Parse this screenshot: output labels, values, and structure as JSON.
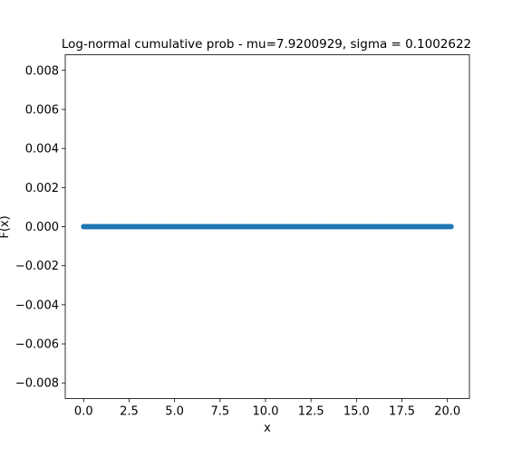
{
  "chart_data": {
    "type": "scatter",
    "title": "Log-normal cumulative prob - mu=7.9200929, sigma = 0.1002622",
    "xlabel": "x",
    "ylabel": "F(x)",
    "xlim": [
      -1.01,
      21.21
    ],
    "ylim": [
      -0.0088,
      0.0088
    ],
    "x_ticks": [
      0.0,
      2.5,
      5.0,
      7.5,
      10.0,
      12.5,
      15.0,
      17.5,
      20.0
    ],
    "x_tick_labels": [
      "0.0",
      "2.5",
      "5.0",
      "7.5",
      "10.0",
      "12.5",
      "15.0",
      "17.5",
      "20.0"
    ],
    "y_ticks": [
      -0.008,
      -0.006,
      -0.004,
      -0.002,
      0.0,
      0.002,
      0.004,
      0.006,
      0.008
    ],
    "y_tick_labels": [
      "−0.008",
      "−0.006",
      "−0.004",
      "−0.002",
      "0.000",
      "0.002",
      "0.004",
      "0.006",
      "0.008"
    ],
    "series": [
      {
        "x_start": 0.0,
        "x_end": 20.2,
        "x_step": 0.1,
        "y": 0.0,
        "color": "#1f77b4"
      }
    ],
    "grid": false,
    "legend": "none"
  }
}
